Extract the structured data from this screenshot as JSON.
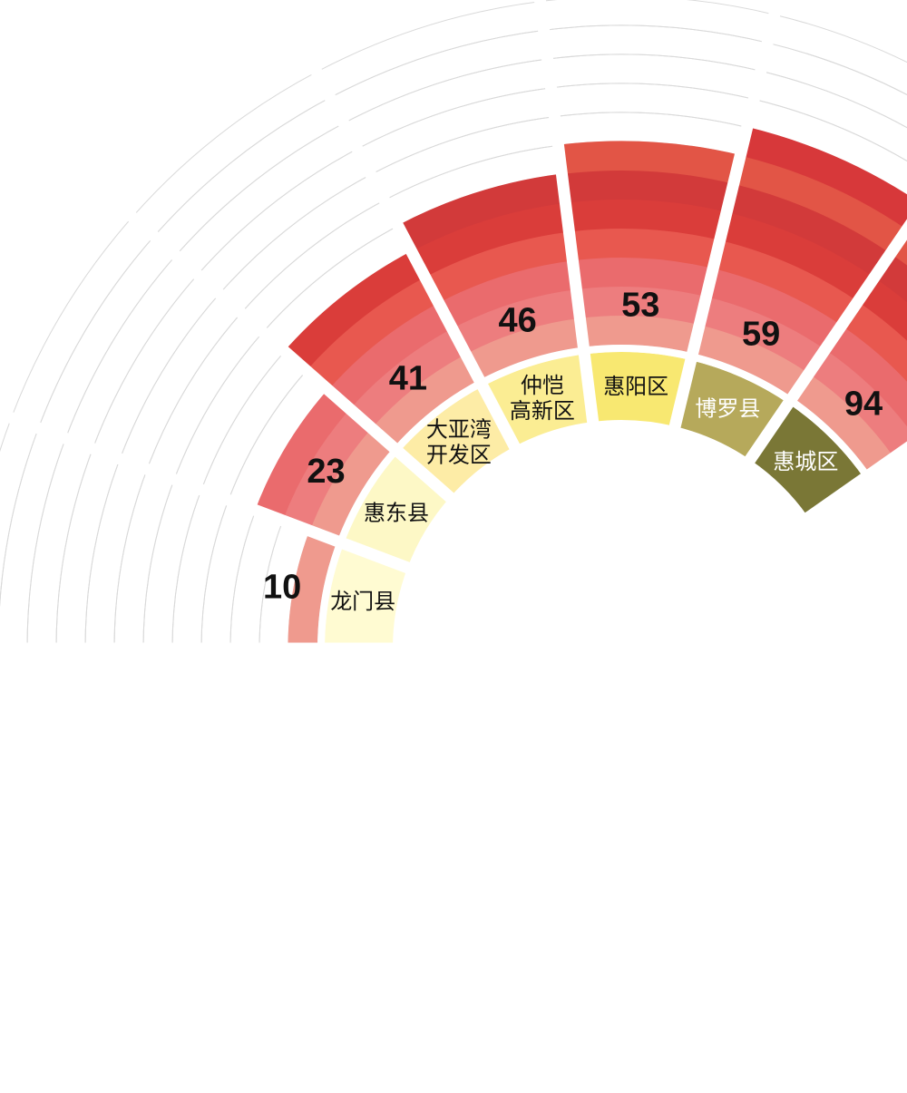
{
  "chart_data": {
    "type": "radial-bar",
    "title": "",
    "categories": [
      "惠城区",
      "博罗县",
      "惠阳区",
      "仲恺\n高新区",
      "大亚湾\n开发区",
      "惠东县",
      "龙门县"
    ],
    "values": [
      94,
      59,
      53,
      46,
      41,
      23,
      10
    ],
    "category_colors": [
      "#7a7736",
      "#b6a95b",
      "#f8e871",
      "#fbed93",
      "#fdeca6",
      "#fdf8c6",
      "#fffbd2"
    ],
    "category_label_colors": [
      "#ffffff",
      "#ffffff",
      "#111111",
      "#111111",
      "#111111",
      "#111111",
      "#111111"
    ],
    "ring_color_scale": [
      "#ef9a8e",
      "#ed7d7e",
      "#ea6b6d",
      "#e8584f",
      "#da3d3a",
      "#d23a3a",
      "#e25546",
      "#d7383a",
      "#9f2a2c",
      "#6e1526",
      "#571a1f",
      "#3f1219"
    ],
    "max_rings": 12,
    "grid": true
  }
}
